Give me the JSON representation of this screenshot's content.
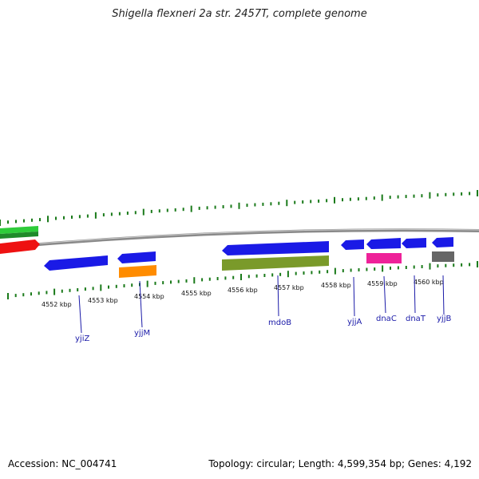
{
  "title": "Shigella flexneri 2a str. 2457T, complete genome",
  "footer": {
    "accession": "Accession: NC_004741",
    "summary": "Topology: circular; Length: 4,599,354 bp; Genes: 4,192"
  },
  "scale_labels": [
    "4552 kbp",
    "4553 kbp",
    "4554 kbp",
    "4555 kbp",
    "4556 kbp",
    "4557 kbp",
    "4558 kbp",
    "4559 kbp",
    "4560 kbp"
  ],
  "gene_labels": [
    "yjiZ",
    "yjjM",
    "mdoB",
    "yjjA",
    "dnaC",
    "dnaT",
    "yjjB"
  ],
  "colors": {
    "blue": "#1a1ae6",
    "green": "#2ecc3a",
    "red": "#ee1111",
    "orange": "#ff8c00",
    "olive": "#7a9a2a",
    "pink": "#ee2299",
    "gray": "#666666",
    "tick": "#1a7a1a",
    "backbone": "#8a8a8a",
    "label_line": "#1a1aa8"
  }
}
